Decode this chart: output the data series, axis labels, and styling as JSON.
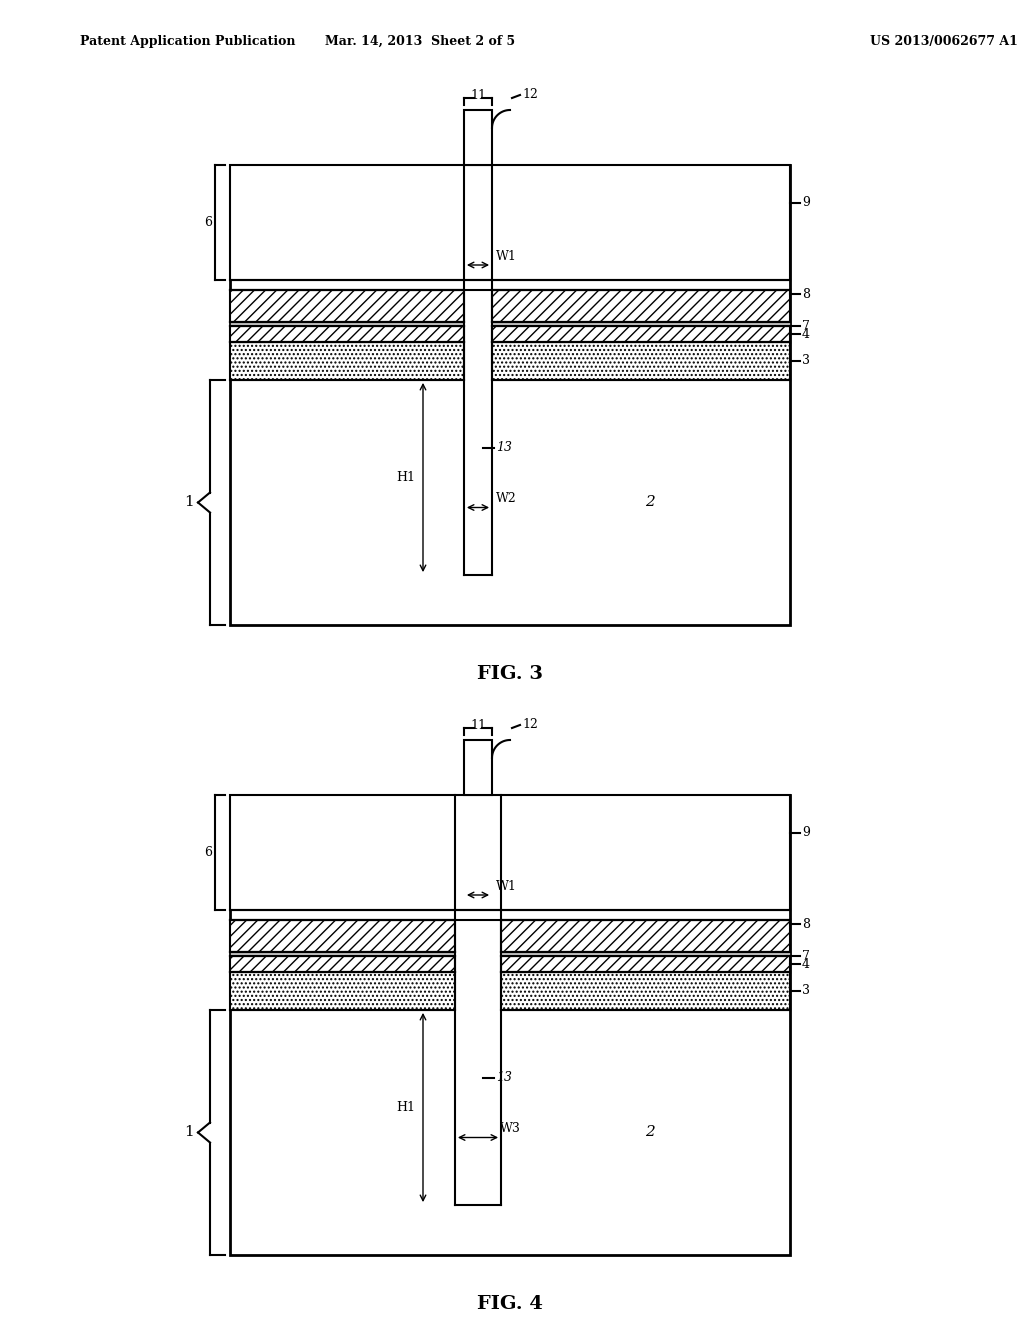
{
  "title_left": "Patent Application Publication",
  "title_center": "Mar. 14, 2013  Sheet 2 of 5",
  "title_right": "US 2013/0062677 A1",
  "fig3_caption": "FIG. 3",
  "fig4_caption": "FIG. 4",
  "bg_color": "#ffffff",
  "line_color": "#000000",
  "hatch_coarse_color": "#000000",
  "hatch_fine_color": "#000000",
  "dot_color": "#000000"
}
